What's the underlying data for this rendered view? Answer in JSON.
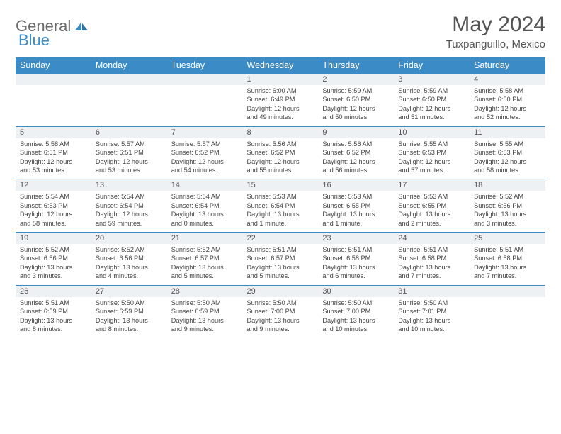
{
  "logo": {
    "text1": "General",
    "text2": "Blue"
  },
  "title": "May 2024",
  "location": "Tuxpanguillo, Mexico",
  "colors": {
    "accent": "#3b8bc6",
    "header_text": "#ffffff",
    "daynum_bg": "#eef1f3"
  },
  "dayNames": [
    "Sunday",
    "Monday",
    "Tuesday",
    "Wednesday",
    "Thursday",
    "Friday",
    "Saturday"
  ],
  "weeks": [
    [
      {
        "n": "",
        "lines": [
          "",
          "",
          "",
          ""
        ]
      },
      {
        "n": "",
        "lines": [
          "",
          "",
          "",
          ""
        ]
      },
      {
        "n": "",
        "lines": [
          "",
          "",
          "",
          ""
        ]
      },
      {
        "n": "1",
        "lines": [
          "Sunrise: 6:00 AM",
          "Sunset: 6:49 PM",
          "Daylight: 12 hours",
          "and 49 minutes."
        ]
      },
      {
        "n": "2",
        "lines": [
          "Sunrise: 5:59 AM",
          "Sunset: 6:50 PM",
          "Daylight: 12 hours",
          "and 50 minutes."
        ]
      },
      {
        "n": "3",
        "lines": [
          "Sunrise: 5:59 AM",
          "Sunset: 6:50 PM",
          "Daylight: 12 hours",
          "and 51 minutes."
        ]
      },
      {
        "n": "4",
        "lines": [
          "Sunrise: 5:58 AM",
          "Sunset: 6:50 PM",
          "Daylight: 12 hours",
          "and 52 minutes."
        ]
      }
    ],
    [
      {
        "n": "5",
        "lines": [
          "Sunrise: 5:58 AM",
          "Sunset: 6:51 PM",
          "Daylight: 12 hours",
          "and 53 minutes."
        ]
      },
      {
        "n": "6",
        "lines": [
          "Sunrise: 5:57 AM",
          "Sunset: 6:51 PM",
          "Daylight: 12 hours",
          "and 53 minutes."
        ]
      },
      {
        "n": "7",
        "lines": [
          "Sunrise: 5:57 AM",
          "Sunset: 6:52 PM",
          "Daylight: 12 hours",
          "and 54 minutes."
        ]
      },
      {
        "n": "8",
        "lines": [
          "Sunrise: 5:56 AM",
          "Sunset: 6:52 PM",
          "Daylight: 12 hours",
          "and 55 minutes."
        ]
      },
      {
        "n": "9",
        "lines": [
          "Sunrise: 5:56 AM",
          "Sunset: 6:52 PM",
          "Daylight: 12 hours",
          "and 56 minutes."
        ]
      },
      {
        "n": "10",
        "lines": [
          "Sunrise: 5:55 AM",
          "Sunset: 6:53 PM",
          "Daylight: 12 hours",
          "and 57 minutes."
        ]
      },
      {
        "n": "11",
        "lines": [
          "Sunrise: 5:55 AM",
          "Sunset: 6:53 PM",
          "Daylight: 12 hours",
          "and 58 minutes."
        ]
      }
    ],
    [
      {
        "n": "12",
        "lines": [
          "Sunrise: 5:54 AM",
          "Sunset: 6:53 PM",
          "Daylight: 12 hours",
          "and 58 minutes."
        ]
      },
      {
        "n": "13",
        "lines": [
          "Sunrise: 5:54 AM",
          "Sunset: 6:54 PM",
          "Daylight: 12 hours",
          "and 59 minutes."
        ]
      },
      {
        "n": "14",
        "lines": [
          "Sunrise: 5:54 AM",
          "Sunset: 6:54 PM",
          "Daylight: 13 hours",
          "and 0 minutes."
        ]
      },
      {
        "n": "15",
        "lines": [
          "Sunrise: 5:53 AM",
          "Sunset: 6:54 PM",
          "Daylight: 13 hours",
          "and 1 minute."
        ]
      },
      {
        "n": "16",
        "lines": [
          "Sunrise: 5:53 AM",
          "Sunset: 6:55 PM",
          "Daylight: 13 hours",
          "and 1 minute."
        ]
      },
      {
        "n": "17",
        "lines": [
          "Sunrise: 5:53 AM",
          "Sunset: 6:55 PM",
          "Daylight: 13 hours",
          "and 2 minutes."
        ]
      },
      {
        "n": "18",
        "lines": [
          "Sunrise: 5:52 AM",
          "Sunset: 6:56 PM",
          "Daylight: 13 hours",
          "and 3 minutes."
        ]
      }
    ],
    [
      {
        "n": "19",
        "lines": [
          "Sunrise: 5:52 AM",
          "Sunset: 6:56 PM",
          "Daylight: 13 hours",
          "and 3 minutes."
        ]
      },
      {
        "n": "20",
        "lines": [
          "Sunrise: 5:52 AM",
          "Sunset: 6:56 PM",
          "Daylight: 13 hours",
          "and 4 minutes."
        ]
      },
      {
        "n": "21",
        "lines": [
          "Sunrise: 5:52 AM",
          "Sunset: 6:57 PM",
          "Daylight: 13 hours",
          "and 5 minutes."
        ]
      },
      {
        "n": "22",
        "lines": [
          "Sunrise: 5:51 AM",
          "Sunset: 6:57 PM",
          "Daylight: 13 hours",
          "and 5 minutes."
        ]
      },
      {
        "n": "23",
        "lines": [
          "Sunrise: 5:51 AM",
          "Sunset: 6:58 PM",
          "Daylight: 13 hours",
          "and 6 minutes."
        ]
      },
      {
        "n": "24",
        "lines": [
          "Sunrise: 5:51 AM",
          "Sunset: 6:58 PM",
          "Daylight: 13 hours",
          "and 7 minutes."
        ]
      },
      {
        "n": "25",
        "lines": [
          "Sunrise: 5:51 AM",
          "Sunset: 6:58 PM",
          "Daylight: 13 hours",
          "and 7 minutes."
        ]
      }
    ],
    [
      {
        "n": "26",
        "lines": [
          "Sunrise: 5:51 AM",
          "Sunset: 6:59 PM",
          "Daylight: 13 hours",
          "and 8 minutes."
        ]
      },
      {
        "n": "27",
        "lines": [
          "Sunrise: 5:50 AM",
          "Sunset: 6:59 PM",
          "Daylight: 13 hours",
          "and 8 minutes."
        ]
      },
      {
        "n": "28",
        "lines": [
          "Sunrise: 5:50 AM",
          "Sunset: 6:59 PM",
          "Daylight: 13 hours",
          "and 9 minutes."
        ]
      },
      {
        "n": "29",
        "lines": [
          "Sunrise: 5:50 AM",
          "Sunset: 7:00 PM",
          "Daylight: 13 hours",
          "and 9 minutes."
        ]
      },
      {
        "n": "30",
        "lines": [
          "Sunrise: 5:50 AM",
          "Sunset: 7:00 PM",
          "Daylight: 13 hours",
          "and 10 minutes."
        ]
      },
      {
        "n": "31",
        "lines": [
          "Sunrise: 5:50 AM",
          "Sunset: 7:01 PM",
          "Daylight: 13 hours",
          "and 10 minutes."
        ]
      },
      {
        "n": "",
        "lines": [
          "",
          "",
          "",
          ""
        ]
      }
    ]
  ]
}
